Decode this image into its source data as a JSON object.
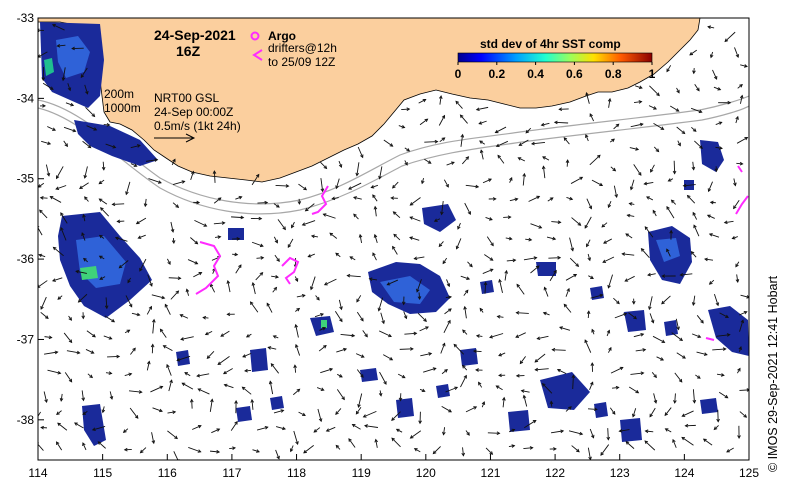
{
  "map": {
    "date": "24-Sep-2021",
    "hour": "16Z",
    "legend": {
      "argo_label": "Argo",
      "drifters_line1": "drifters@12h",
      "drifters_line2": "to 25/09 12Z"
    },
    "contours": {
      "line1": "200m",
      "line2": "1000m"
    },
    "currents": {
      "line1": "NRT00 GSL",
      "line2": "24-Sep 00:00Z",
      "line3": "0.5m/s (1kt 24h)"
    },
    "colorbar": {
      "title": "std dev of 4hr SST comp",
      "ticks": [
        "0",
        "0.2",
        "0.4",
        "0.6",
        "0.8",
        "1"
      ],
      "range": [
        0,
        1
      ]
    },
    "credit": "© IMOS 29-Sep-2021 12:41 Hobart",
    "x_ticks": [
      "114",
      "115",
      "116",
      "117",
      "118",
      "119",
      "120",
      "121",
      "122",
      "123",
      "124",
      "125"
    ],
    "y_ticks": [
      "-33",
      "-34",
      "-35",
      "-36",
      "-37",
      "-38"
    ],
    "lon_range": [
      114,
      125
    ],
    "lat_range": [
      -38.5,
      -33
    ],
    "colors": {
      "land": "#fbcf9e",
      "drifter": "#ff2bff",
      "data_dark": "#1a2a9a",
      "data_mid": "#2f62d8",
      "contour": "#a8a8a8"
    }
  }
}
